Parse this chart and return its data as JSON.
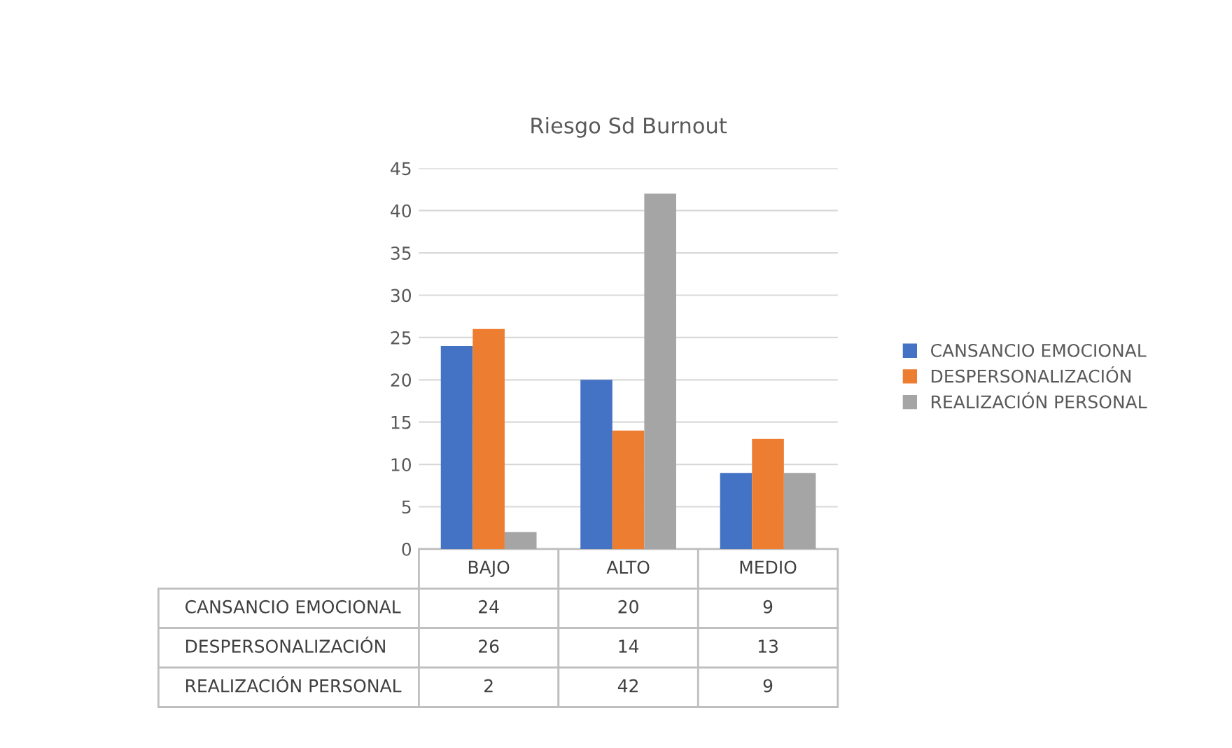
{
  "chart_data": {
    "type": "bar",
    "title": "Riesgo Sd Burnout",
    "categories": [
      "BAJO",
      "ALTO",
      "MEDIO"
    ],
    "series": [
      {
        "name": "CANSANCIO EMOCIONAL",
        "color": "#4472c4",
        "values": [
          24,
          20,
          9
        ]
      },
      {
        "name": "DESPERSONALIZACIÓN",
        "color": "#ed7d31",
        "values": [
          26,
          14,
          13
        ]
      },
      {
        "name": "REALIZACIÓN PERSONAL",
        "color": "#a5a5a5",
        "values": [
          2,
          42,
          9
        ]
      }
    ],
    "ylim": [
      0,
      45
    ],
    "yticks": [
      0,
      5,
      10,
      15,
      20,
      25,
      30,
      35,
      40,
      45
    ],
    "grid": "y",
    "legend": "right",
    "data_labels": true
  }
}
